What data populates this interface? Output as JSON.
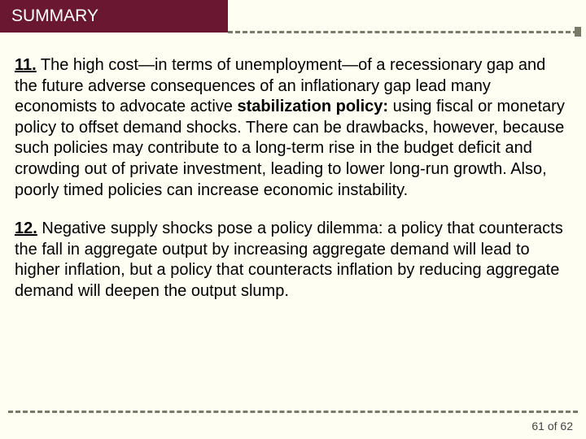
{
  "colors": {
    "background": "#fffef2",
    "header_bg": "#6a1831",
    "header_text": "#ffffff",
    "body_text": "#000000",
    "dash_color": "#7a7a68"
  },
  "typography": {
    "header_fontsize": 21,
    "body_fontsize": 20,
    "pagenum_fontsize": 14,
    "font_family": "Arial"
  },
  "header": {
    "title": "SUMMARY"
  },
  "paragraphs": [
    {
      "number": "11.",
      "segments": [
        {
          "text": " The high cost—in terms of unemployment—of a recessionary gap and the future adverse consequences of an inflationary gap lead many economists to advocate active ",
          "bold": false
        },
        {
          "text": "stabilization policy:",
          "bold": true
        },
        {
          "text": " using fiscal or monetary policy to offset demand shocks. There can be drawbacks, however, because such policies may contribute to a long-term rise in the budget deficit and crowding out of private investment, leading to lower long-run growth. Also, poorly timed policies can increase economic instability.",
          "bold": false
        }
      ]
    },
    {
      "number": "12.",
      "segments": [
        {
          "text": " Negative supply shocks pose a policy dilemma: a policy that counteracts the fall in aggregate output by increasing aggregate demand will lead to higher inflation, but a policy that counteracts inflation by reducing aggregate demand will deepen the output slump.",
          "bold": false
        }
      ]
    }
  ],
  "footer": {
    "page_current": 61,
    "page_total": 62,
    "page_label": "61 of 62"
  }
}
